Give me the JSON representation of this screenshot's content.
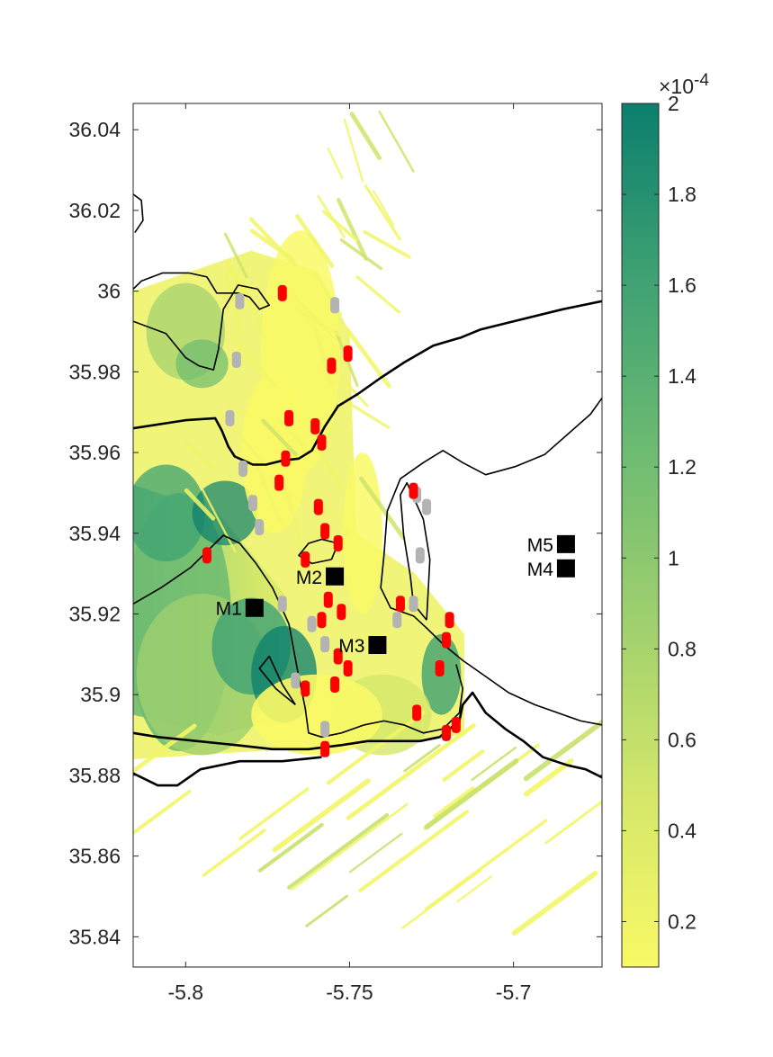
{
  "chart_data": {
    "type": "heatmap",
    "title": "",
    "xlabel": "",
    "ylabel": "",
    "xlim": [
      -5.816,
      -5.673
    ],
    "ylim": [
      35.8325,
      36.0465
    ],
    "x_ticks": [
      -5.8,
      -5.75,
      -5.7
    ],
    "x_tick_labels": [
      "-5.8",
      "-5.75",
      "-5.7"
    ],
    "y_ticks": [
      35.84,
      35.86,
      35.88,
      35.9,
      35.92,
      35.94,
      35.96,
      35.98,
      36.0,
      36.02,
      36.04
    ],
    "y_tick_labels": [
      "35.84",
      "35.86",
      "35.88",
      "35.9",
      "35.92",
      "35.94",
      "35.96",
      "35.98",
      "36",
      "36.02",
      "36.04"
    ],
    "colorbar": {
      "min": 0.1,
      "max": 2,
      "ticks": [
        0.2,
        0.4,
        0.6,
        0.8,
        1,
        1.2,
        1.4,
        1.6,
        1.8,
        2
      ],
      "tick_labels": [
        "0.2",
        "0.4",
        "0.6",
        "0.8",
        "1",
        "1.2",
        "1.4",
        "1.6",
        "1.8",
        "2"
      ],
      "exponent_label": "×10",
      "exponent_power": "-4",
      "colormap": [
        "#f9f966",
        "#d4e76a",
        "#9fd06e",
        "#6cbb72",
        "#3ea173",
        "#0b7f6d"
      ]
    },
    "stations": [
      {
        "name": "M1",
        "x": -5.779,
        "y": 35.9215
      },
      {
        "name": "M2",
        "x": -5.7545,
        "y": 35.9293
      },
      {
        "name": "M3",
        "x": -5.7415,
        "y": 35.9123
      },
      {
        "name": "M4",
        "x": -5.684,
        "y": 35.9313
      },
      {
        "name": "M5",
        "x": -5.684,
        "y": 35.9373
      }
    ],
    "grey_markers": [
      [
        -5.7835,
        35.9975
      ],
      [
        -5.7845,
        35.983
      ],
      [
        -5.7865,
        35.9685
      ],
      [
        -5.7825,
        35.956
      ],
      [
        -5.7795,
        35.9475
      ],
      [
        -5.7775,
        35.9415
      ],
      [
        -5.7615,
        35.9175
      ],
      [
        -5.7575,
        35.9125
      ],
      [
        -5.7665,
        35.9035
      ],
      [
        -5.7575,
        35.8915
      ],
      [
        -5.7295,
        35.9495
      ],
      [
        -5.7265,
        35.9465
      ],
      [
        -5.7285,
        35.9345
      ],
      [
        -5.7405,
        35.9125
      ],
      [
        -5.7355,
        35.9185
      ],
      [
        -5.7305,
        35.9225
      ],
      [
        -5.7545,
        35.9965
      ],
      [
        -5.7705,
        35.9225
      ]
    ],
    "red_markers": [
      [
        -5.7705,
        35.9995
      ],
      [
        -5.7505,
        35.9845
      ],
      [
        -5.7555,
        35.9815
      ],
      [
        -5.7685,
        35.9685
      ],
      [
        -5.7605,
        35.9665
      ],
      [
        -5.7585,
        35.9625
      ],
      [
        -5.7695,
        35.9585
      ],
      [
        -5.7715,
        35.9525
      ],
      [
        -5.7595,
        35.9465
      ],
      [
        -5.7575,
        35.9405
      ],
      [
        -5.7535,
        35.9375
      ],
      [
        -5.7565,
        35.9235
      ],
      [
        -5.7585,
        35.9185
      ],
      [
        -5.7525,
        35.9205
      ],
      [
        -5.7535,
        35.9095
      ],
      [
        -5.7505,
        35.9065
      ],
      [
        -5.7545,
        35.9025
      ],
      [
        -5.7635,
        35.9015
      ],
      [
        -5.7575,
        35.8865
      ],
      [
        -5.7305,
        35.9505
      ],
      [
        -5.7345,
        35.9225
      ],
      [
        -5.7225,
        35.9065
      ],
      [
        -5.7205,
        35.9135
      ],
      [
        -5.7195,
        35.9185
      ],
      [
        -5.7175,
        35.8925
      ],
      [
        -5.7205,
        35.8905
      ],
      [
        -5.7295,
        35.8955
      ],
      [
        -5.7935,
        35.9345
      ],
      [
        -5.7635,
        35.9335
      ]
    ],
    "contours": [
      [
        [
          -5.816,
          35.9925
        ],
        [
          -5.806,
          35.9895
        ],
        [
          -5.8,
          35.9835
        ],
        [
          -5.796,
          35.9815
        ],
        [
          -5.7915,
          35.9805
        ],
        [
          -5.79,
          35.9855
        ],
        [
          -5.7885,
          35.9955
        ],
        [
          -5.784,
          36.0015
        ],
        [
          -5.778,
          36.0005
        ],
        [
          -5.7745,
          35.9965
        ],
        [
          -5.7775,
          35.9955
        ],
        [
          -5.7805,
          35.9985
        ],
        [
          -5.784,
          35.9995
        ],
        [
          -5.7905,
          35.9995
        ],
        [
          -5.7935,
          36.0035
        ],
        [
          -5.799,
          36.0045
        ],
        [
          -5.807,
          36.0045
        ],
        [
          -5.8135,
          36.0025
        ],
        [
          -5.816,
          36.0005
        ]
      ],
      [
        [
          -5.816,
          35.966
        ],
        [
          -5.8,
          35.968
        ],
        [
          -5.791,
          35.9685
        ],
        [
          -5.789,
          35.9655
        ],
        [
          -5.787,
          35.9615
        ],
        [
          -5.785,
          35.959
        ],
        [
          -5.7795,
          35.957
        ],
        [
          -5.7755,
          35.957
        ],
        [
          -5.7705,
          35.958
        ],
        [
          -5.7655,
          35.9585
        ],
        [
          -5.7615,
          35.9605
        ],
        [
          -5.7575,
          35.9665
        ],
        [
          -5.7535,
          35.9715
        ],
        [
          -5.7475,
          35.9745
        ],
        [
          -5.7405,
          35.9785
        ],
        [
          -5.733,
          35.9825
        ],
        [
          -5.7245,
          35.9865
        ],
        [
          -5.716,
          35.9885
        ],
        [
          -5.71,
          35.9905
        ],
        [
          -5.7,
          35.9925
        ],
        [
          -5.685,
          35.9955
        ],
        [
          -5.673,
          35.9975
        ]
      ],
      [
        [
          -5.816,
          35.9225
        ],
        [
          -5.8075,
          35.9265
        ],
        [
          -5.7985,
          35.9315
        ],
        [
          -5.7935,
          35.9355
        ],
        [
          -5.7885,
          35.9395
        ],
        [
          -5.7835,
          35.9375
        ],
        [
          -5.7785,
          35.9325
        ],
        [
          -5.7735,
          35.9265
        ],
        [
          -5.7685,
          35.9175
        ],
        [
          -5.766,
          35.9065
        ],
        [
          -5.7635,
          35.8965
        ],
        [
          -5.7625,
          35.8905
        ],
        [
          -5.7585,
          35.8895
        ],
        [
          -5.7525,
          35.8905
        ],
        [
          -5.7455,
          35.8925
        ],
        [
          -5.7395,
          35.8935
        ],
        [
          -5.7335,
          35.8925
        ],
        [
          -5.7275,
          35.8905
        ],
        [
          -5.7215,
          35.8915
        ],
        [
          -5.7165,
          35.8955
        ],
        [
          -5.7155,
          35.9015
        ],
        [
          -5.7175,
          35.9075
        ]
      ],
      [
        [
          -5.816,
          35.8905
        ],
        [
          -5.8085,
          35.8895
        ],
        [
          -5.7965,
          35.8885
        ],
        [
          -5.7845,
          35.8875
        ],
        [
          -5.7735,
          35.8865
        ],
        [
          -5.7625,
          35.8865
        ],
        [
          -5.7525,
          35.8875
        ],
        [
          -5.7445,
          35.8885
        ],
        [
          -5.7365,
          35.8885
        ],
        [
          -5.7285,
          35.8885
        ],
        [
          -5.7225,
          35.8895
        ],
        [
          -5.7165,
          35.8935
        ],
        [
          -5.7155,
          35.8975
        ],
        [
          -5.7125,
          35.9005
        ],
        [
          -5.7085,
          35.8955
        ],
        [
          -5.7025,
          35.8915
        ],
        [
          -5.697,
          35.8885
        ],
        [
          -5.691,
          35.8845
        ],
        [
          -5.6835,
          35.8825
        ],
        [
          -5.678,
          35.8815
        ],
        [
          -5.673,
          35.8795
        ]
      ],
      [
        [
          -5.816,
          35.8805
        ],
        [
          -5.8085,
          35.8775
        ],
        [
          -5.8025,
          35.8775
        ],
        [
          -5.7955,
          35.8815
        ],
        [
          -5.7835,
          35.8835
        ],
        [
          -5.7705,
          35.8835
        ],
        [
          -5.7585,
          35.8845
        ]
      ],
      [
        [
          -5.7555,
          35.9335
        ],
        [
          -5.7535,
          35.9375
        ],
        [
          -5.7585,
          35.9385
        ],
        [
          -5.7625,
          35.9375
        ],
        [
          -5.7655,
          35.9345
        ],
        [
          -5.7615,
          35.9325
        ],
        [
          -5.7555,
          35.9335
        ]
      ],
      [
        [
          -5.7395,
          35.9345
        ],
        [
          -5.7385,
          35.9455
        ],
        [
          -5.7345,
          35.9535
        ],
        [
          -5.7275,
          35.9575
        ],
        [
          -5.7215,
          35.9605
        ],
        [
          -5.7155,
          35.9575
        ],
        [
          -5.7085,
          35.9545
        ],
        [
          -5.6995,
          35.9565
        ],
        [
          -5.6905,
          35.9595
        ],
        [
          -5.6835,
          35.9645
        ],
        [
          -5.6765,
          35.9695
        ],
        [
          -5.673,
          35.9735
        ]
      ],
      [
        [
          -5.7395,
          35.9345
        ],
        [
          -5.7405,
          35.9265
        ],
        [
          -5.7375,
          35.9215
        ],
        [
          -5.7305,
          35.9195
        ],
        [
          -5.7265,
          35.9165
        ],
        [
          -5.7215,
          35.9125
        ],
        [
          -5.7155,
          35.9085
        ],
        [
          -5.7085,
          35.9045
        ],
        [
          -5.7015,
          35.9005
        ],
        [
          -5.6935,
          35.8975
        ],
        [
          -5.6865,
          35.8955
        ],
        [
          -5.6795,
          35.8935
        ],
        [
          -5.673,
          35.8925
        ]
      ],
      [
        [
          -5.7265,
          35.9185
        ],
        [
          -5.7255,
          35.9335
        ],
        [
          -5.7275,
          35.9435
        ],
        [
          -5.7325,
          35.9525
        ],
        [
          -5.7345,
          35.9495
        ],
        [
          -5.7335,
          35.9395
        ],
        [
          -5.7315,
          35.9295
        ],
        [
          -5.7305,
          35.9225
        ],
        [
          -5.7265,
          35.9185
        ]
      ],
      [
        [
          -5.7665,
          35.8975
        ],
        [
          -5.7705,
          35.9025
        ],
        [
          -5.7745,
          35.9095
        ],
        [
          -5.7775,
          35.9065
        ],
        [
          -5.7725,
          35.9015
        ],
        [
          -5.7665,
          35.8975
        ]
      ],
      [
        [
          -5.816,
          36.024
        ],
        [
          -5.8135,
          36.0225
        ],
        [
          -5.813,
          36.0175
        ],
        [
          -5.8155,
          36.0145
        ]
      ]
    ]
  }
}
